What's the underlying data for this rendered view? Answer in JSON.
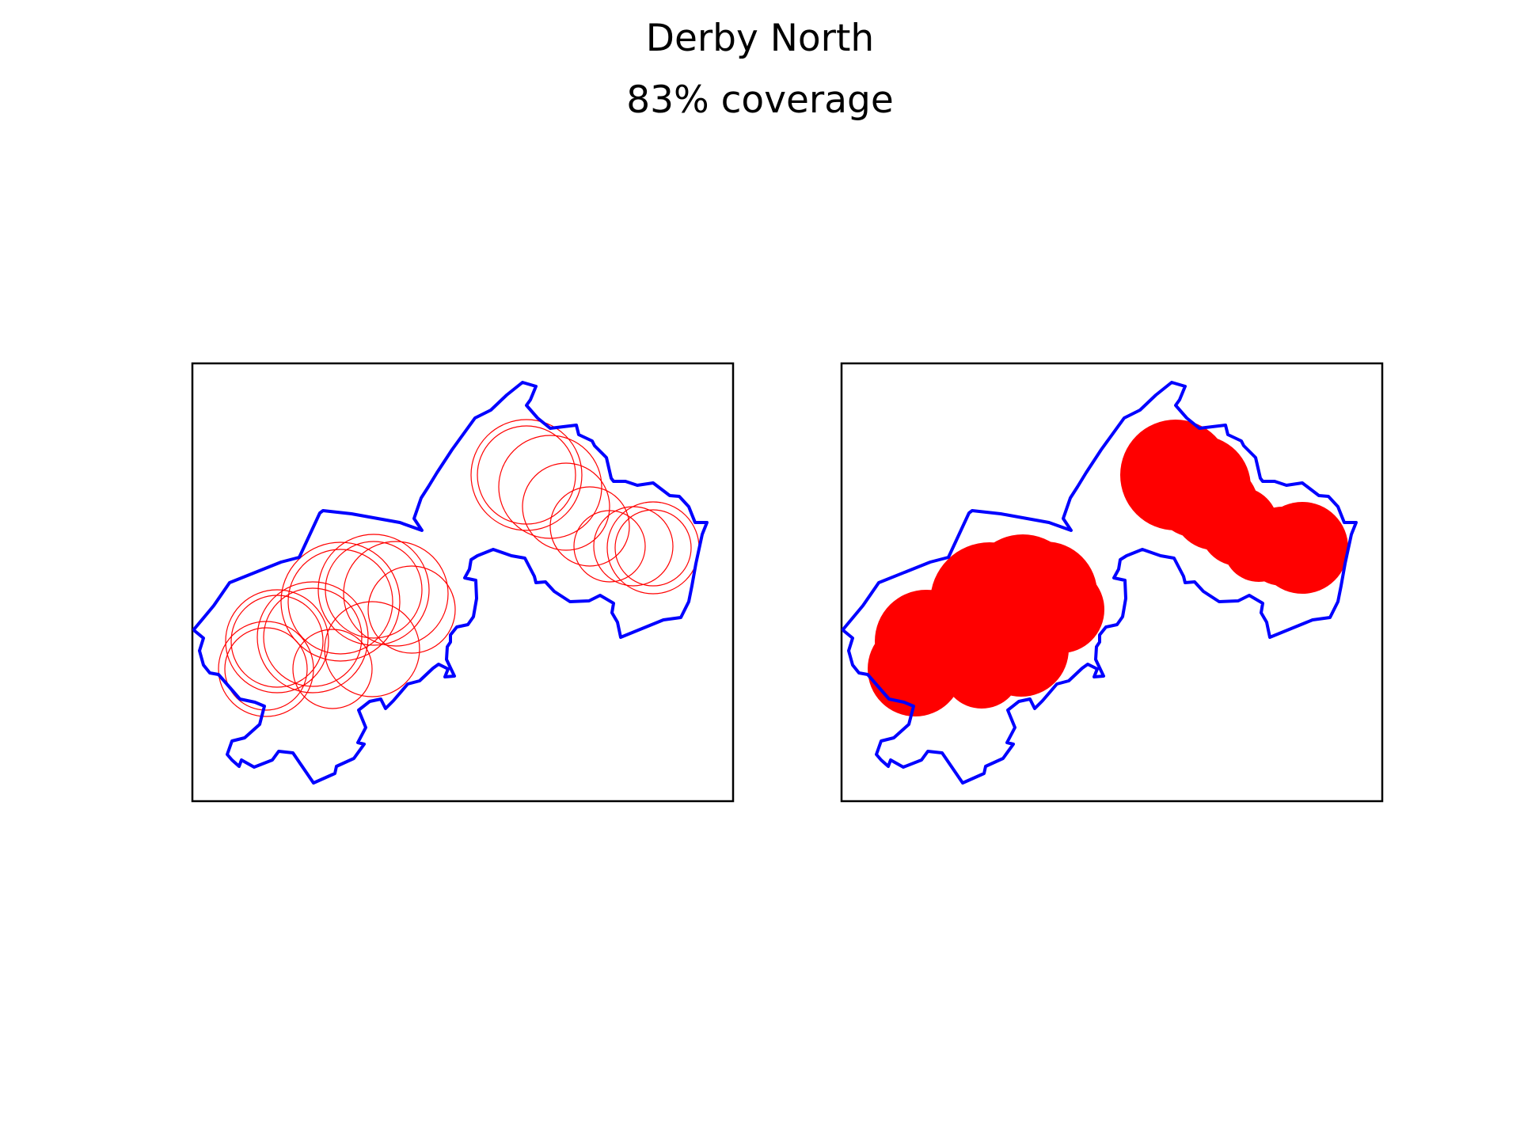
{
  "figure": {
    "title": "Derby North",
    "subtitle": "83% coverage"
  },
  "colors": {
    "boundary": "#0000ff",
    "coverage": "#ff0000",
    "frame": "#000000",
    "background": "#ffffff"
  },
  "panels": [
    {
      "name": "coverage-outline-panel",
      "style": "outline"
    },
    {
      "name": "coverage-filled-panel",
      "style": "filled"
    }
  ]
}
